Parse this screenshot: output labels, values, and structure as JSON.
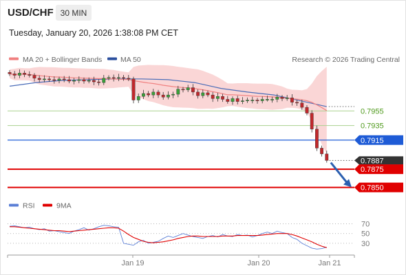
{
  "header": {
    "symbol": "USD/CHF",
    "timeframe": "30 MIN",
    "datetime": "Tuesday, January 20, 2026 1:38:08 PM CET"
  },
  "legend": {
    "items": [
      {
        "label": "MA 20 + Bollinger Bands",
        "color": "#f08080"
      },
      {
        "label": "MA 50",
        "color": "#2b4f9e"
      }
    ],
    "credit": "Research © 2026 Trading Central"
  },
  "rsi_legend": {
    "items": [
      {
        "label": "RSI",
        "color": "#5b7fd6"
      },
      {
        "label": "9MA",
        "color": "#e00000"
      }
    ]
  },
  "colors": {
    "bullish_candle": "#3aa13a",
    "bearish_candle": "#c0282c",
    "band_fill": "#f8c8c8",
    "ma20": "#f08080",
    "ma50": "#4a6cb8",
    "resistance_line": "#a9d18e",
    "resistance_label": "#4f9a1c",
    "pivot": "#1e5bd6",
    "support": "#e00000",
    "current_price_tag": "#333333",
    "arrow": "#2b5fb0"
  },
  "chart_data": [
    {
      "type": "candlestick",
      "title": "USD/CHF 30 MIN",
      "x_ticks": [
        "Jan 19",
        "Jan 20",
        "Jan 21"
      ],
      "ylim": [
        0.7843,
        0.8013
      ],
      "current_price": 0.7887,
      "levels": [
        {
          "value": 0.7955,
          "label": "0.7955",
          "kind": "resistance"
        },
        {
          "value": 0.7935,
          "label": "0.7935",
          "kind": "resistance"
        },
        {
          "value": 0.7915,
          "label": "0.7915",
          "kind": "pivot"
        },
        {
          "value": 0.7887,
          "label": "0.7887",
          "kind": "current"
        },
        {
          "value": 0.7875,
          "label": "0.7875",
          "kind": "support"
        },
        {
          "value": 0.785,
          "label": "0.7850",
          "kind": "support"
        }
      ],
      "series": [
        {
          "name": "Close",
          "x_index_range": [
            0,
            64
          ],
          "close": [
            0.8006,
            0.8004,
            0.8007,
            0.8005,
            0.8004,
            0.8,
            0.7998,
            0.7999,
            0.7998,
            0.7997,
            0.7999,
            0.7998,
            0.7996,
            0.7997,
            0.7998,
            0.7996,
            0.7997,
            0.7995,
            0.7994,
            0.8,
            0.8001,
            0.8,
            0.8001,
            0.8,
            0.7999,
            0.797,
            0.7975,
            0.7979,
            0.7977,
            0.7981,
            0.7977,
            0.7974,
            0.7977,
            0.7978,
            0.7985,
            0.7984,
            0.7987,
            0.7981,
            0.7976,
            0.798,
            0.7977,
            0.7972,
            0.7975,
            0.7971,
            0.7968,
            0.7972,
            0.7968,
            0.7969,
            0.797,
            0.797,
            0.7969,
            0.7971,
            0.7971,
            0.7971,
            0.7974,
            0.7972,
            0.7973,
            0.7967,
            0.7966,
            0.796,
            0.7952,
            0.793,
            0.7904,
            0.7896,
            0.7887
          ]
        },
        {
          "name": "MA 50",
          "values": [
            0.7989,
            0.7994,
            0.7997,
            0.7998,
            0.7999,
            0.7999,
            0.7998,
            0.7994,
            0.7986,
            0.7981,
            0.7977,
            0.7969,
            0.7961
          ]
        }
      ]
    },
    {
      "type": "line",
      "title": "RSI",
      "y_ticks": [
        30,
        50,
        70
      ],
      "ylim": [
        10,
        85
      ],
      "series": [
        {
          "name": "RSI",
          "values": [
            65,
            66,
            64,
            62,
            63,
            60,
            58,
            60,
            55,
            56,
            54,
            52,
            50,
            55,
            58,
            62,
            57,
            60,
            64,
            67,
            66,
            64,
            63,
            30,
            28,
            26,
            33,
            36,
            30,
            32,
            34,
            40,
            45,
            42,
            46,
            50,
            47,
            44,
            42,
            40,
            44,
            46,
            43,
            48,
            45,
            44,
            48,
            46,
            47,
            43,
            46,
            50,
            53,
            50,
            55,
            52,
            50,
            42,
            38,
            30,
            25,
            20,
            18,
            19,
            22
          ]
        },
        {
          "name": "9MA",
          "values": [
            64,
            64,
            63,
            62,
            61,
            60,
            59,
            58,
            57,
            56,
            56,
            55,
            54,
            55,
            56,
            57,
            58,
            59,
            60,
            61,
            62,
            62,
            61,
            55,
            48,
            42,
            38,
            34,
            32,
            31,
            32,
            33,
            35,
            37,
            40,
            42,
            44,
            45,
            45,
            44,
            44,
            44,
            44,
            45,
            45,
            45,
            46,
            46,
            46,
            46,
            46,
            47,
            48,
            49,
            50,
            50,
            50,
            48,
            45,
            41,
            37,
            33,
            28,
            24,
            21
          ]
        }
      ]
    }
  ]
}
